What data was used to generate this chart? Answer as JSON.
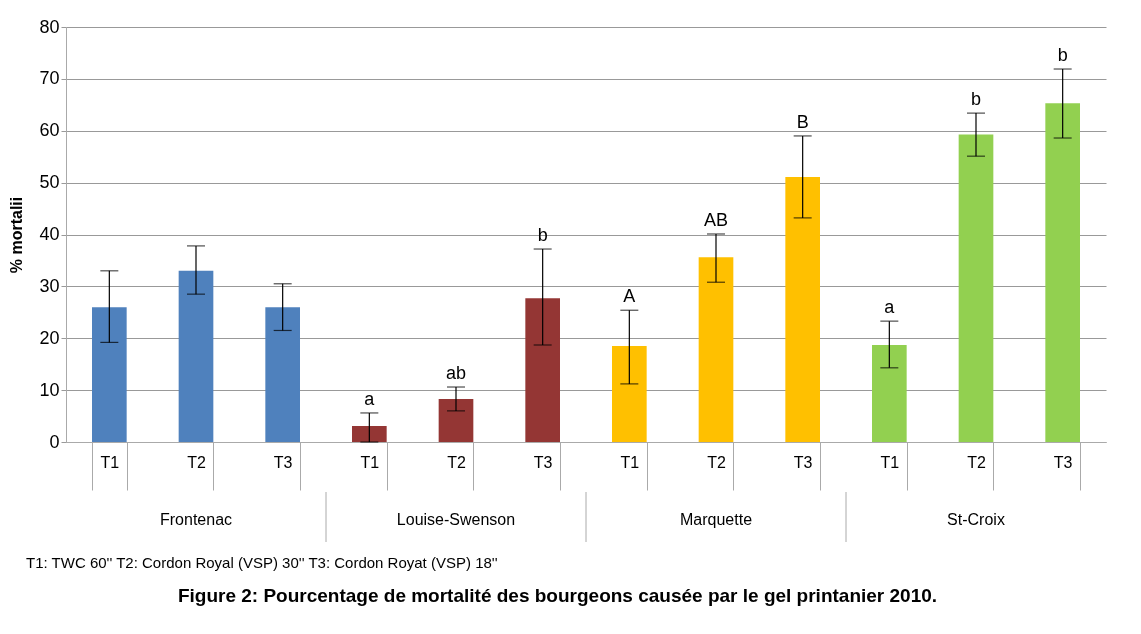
{
  "chart_data": {
    "type": "bar",
    "title": "Figure 2: Pourcentage de mortalité des bourgeons causée par le gel printanier 2010.",
    "ylabel": "% mortalii",
    "categories": [
      "T1",
      "T2",
      "T3",
      "T1",
      "T2",
      "T3",
      "T1",
      "T2",
      "T3",
      "T1",
      "T2",
      "T3"
    ],
    "ylim": [
      0,
      80
    ],
    "yticks": [
      0,
      10,
      20,
      30,
      40,
      50,
      60,
      70,
      80
    ],
    "grid": "y",
    "annotations": [
      "T1: TWC 60''    T2: Cordon Royal (VSP) 30''    T3: Cordon Royat (VSP) 18''"
    ],
    "series": [
      {
        "name": "Frontenac",
        "color": "#4f81bd",
        "values": [
          26,
          33,
          26,
          null,
          null,
          null,
          null,
          null,
          null,
          null,
          null,
          null
        ],
        "errors": [
          [
            19.2,
            33
          ],
          [
            28.5,
            37.8
          ],
          [
            21.5,
            30.5
          ],
          null,
          null,
          null,
          null,
          null,
          null,
          null,
          null,
          null
        ]
      },
      {
        "name": "Louise-Swenson",
        "color": "#943634",
        "values": [
          null,
          null,
          null,
          3.1,
          8.3,
          27.7,
          null,
          null,
          null,
          null,
          null,
          null
        ],
        "errors": [
          null,
          null,
          null,
          [
            0,
            5.6
          ],
          [
            6,
            10.6
          ],
          [
            18.7,
            37.2
          ],
          null,
          null,
          null,
          null,
          null,
          null
        ],
        "value_labels": [
          null,
          null,
          null,
          "a",
          "ab",
          "b",
          null,
          null,
          null,
          null,
          null,
          null
        ]
      },
      {
        "name": "Marquette",
        "color": "#ffc000",
        "values": [
          null,
          null,
          null,
          null,
          null,
          null,
          18.5,
          35.6,
          51.1,
          null,
          null,
          null
        ],
        "errors": [
          null,
          null,
          null,
          null,
          null,
          null,
          [
            11.2,
            25.4
          ],
          [
            30.8,
            40.1
          ],
          [
            43.2,
            59
          ],
          null,
          null,
          null
        ],
        "value_labels": [
          null,
          null,
          null,
          null,
          null,
          null,
          "A",
          "AB",
          "B",
          null,
          null,
          null
        ]
      },
      {
        "name": "St-Croix",
        "color": "#92d050",
        "values": [
          null,
          null,
          null,
          null,
          null,
          null,
          null,
          null,
          null,
          18.7,
          59.3,
          65.3
        ],
        "errors": [
          null,
          null,
          null,
          null,
          null,
          null,
          null,
          null,
          null,
          [
            14.3,
            23.3
          ],
          [
            55.1,
            63.4
          ],
          [
            58.6,
            71.9
          ]
        ],
        "value_labels": [
          null,
          null,
          null,
          null,
          null,
          null,
          null,
          null,
          null,
          "a",
          "b",
          "b"
        ]
      }
    ]
  }
}
